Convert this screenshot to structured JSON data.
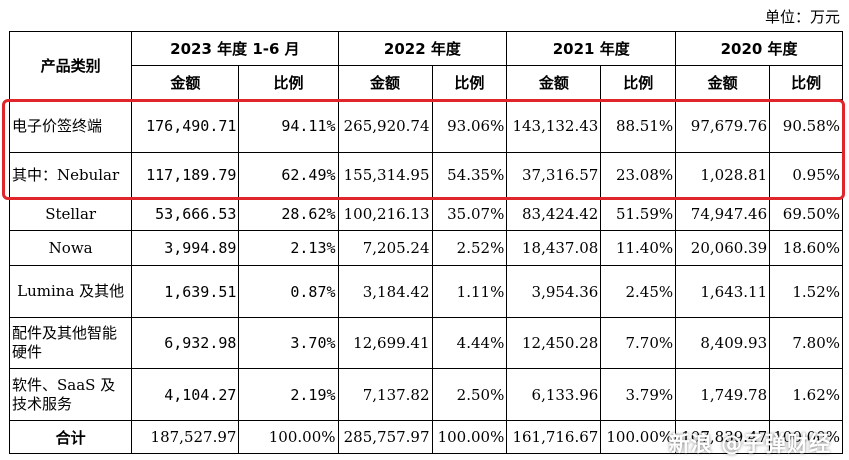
{
  "unit_label": "单位：万元",
  "header": {
    "category": "产品类别",
    "periods": [
      "2023 年度 1-6 月",
      "2022 年度",
      "2021 年度",
      "2020 年度"
    ],
    "amount": "金额",
    "ratio": "比例"
  },
  "rows": [
    {
      "category": "电子价签终端",
      "values": [
        "176,490.71",
        "94.11%",
        "265,920.74",
        "93.06%",
        "143,132.43",
        "88.51%",
        "97,679.76",
        "90.58%"
      ]
    },
    {
      "category": "其中：Nebular",
      "values": [
        "117,189.79",
        "62.49%",
        "155,314.95",
        "54.35%",
        "37,316.57",
        "23.08%",
        "1,028.81",
        "0.95%"
      ]
    },
    {
      "category": "Stellar",
      "values": [
        "53,666.53",
        "28.62%",
        "100,216.13",
        "35.07%",
        "83,424.42",
        "51.59%",
        "74,947.46",
        "69.50%"
      ]
    },
    {
      "category": "Nowa",
      "values": [
        "3,994.89",
        "2.13%",
        "7,205.24",
        "2.52%",
        "18,437.08",
        "11.40%",
        "20,060.39",
        "18.60%"
      ]
    },
    {
      "category": "Lumina 及其他",
      "values": [
        "1,639.51",
        "0.87%",
        "3,184.42",
        "1.11%",
        "3,954.36",
        "2.45%",
        "1,643.11",
        "1.52%"
      ]
    },
    {
      "category": "配件及其他智能硬件",
      "values": [
        "6,932.98",
        "3.70%",
        "12,699.41",
        "4.44%",
        "12,450.28",
        "7.70%",
        "8,409.93",
        "7.80%"
      ]
    },
    {
      "category": "软件、SaaS 及技术服务",
      "values": [
        "4,104.27",
        "2.19%",
        "7,137.82",
        "2.50%",
        "6,133.96",
        "3.79%",
        "1,749.78",
        "1.62%"
      ]
    }
  ],
  "total": {
    "category": "合计",
    "values": [
      "187,527.97",
      "100.00%",
      "285,757.97",
      "100.00%",
      "161,716.67",
      "100.00%",
      "107,839.47",
      "100.00%"
    ]
  },
  "watermark": "新浪 @子弹财经",
  "colors": {
    "highlight": "#e0262a"
  }
}
